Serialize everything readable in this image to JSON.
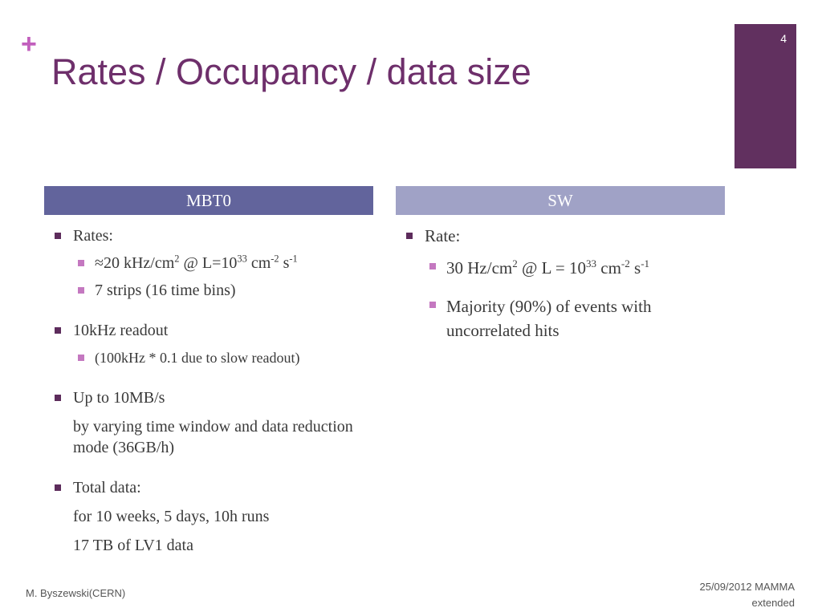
{
  "slide_number": "4",
  "title": "Rates / Occupancy / data size",
  "left": {
    "header": "MBT0",
    "bullets": [
      {
        "text": "Rates:",
        "sub": [
          {
            "parts": [
              "≈20 kHz/cm",
              {
                "sup": "2"
              },
              " @ L=10",
              {
                "sup": "33"
              },
              " cm",
              {
                "sup": "-2"
              },
              " s",
              {
                "sup": "-1"
              }
            ]
          },
          {
            "text": "7 strips (16 time bins)"
          }
        ]
      },
      {
        "text": "10kHz readout",
        "sub": [
          {
            "text": "(100kHz * 0.1  due to slow readout)"
          }
        ]
      },
      {
        "text": "Up to 10MB/s",
        "notes": [
          "by varying time window and data reduction mode (36GB/h)"
        ]
      },
      {
        "text": "Total data:",
        "notes": [
          "for 10 weeks, 5 days, 10h runs",
          "17 TB of LV1 data"
        ]
      }
    ]
  },
  "right": {
    "header": "SW",
    "bullets": [
      {
        "text": "Rate:",
        "sub": [
          {
            "parts": [
              "30 Hz/cm",
              {
                "sup": "2"
              },
              " @ L = 10",
              {
                "sup": "33"
              },
              " cm",
              {
                "sup": "-2"
              },
              " s",
              {
                "sup": "-1"
              }
            ]
          },
          {
            "text": "Majority (90%) of events with uncorrelated hits"
          }
        ]
      }
    ]
  },
  "footer": {
    "author": "M. Byszewski(CERN)",
    "date": "25/09/2012 MAMMA extended"
  }
}
